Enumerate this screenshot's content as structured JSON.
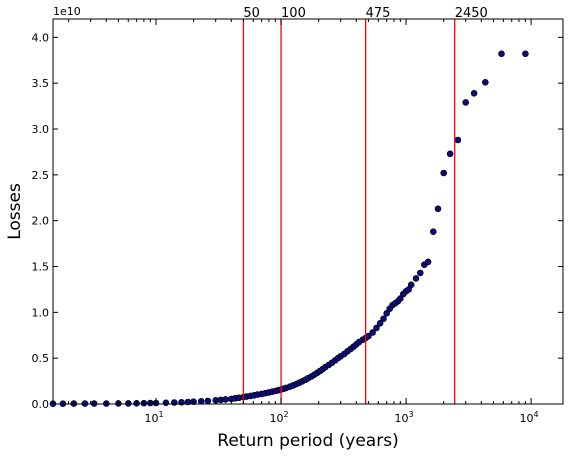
{
  "chart_data": {
    "type": "scatter",
    "title": "",
    "xlabel": "Return period (years)",
    "ylabel": "Losses",
    "x_scale": "log",
    "xlim": [
      1.5,
      18000
    ],
    "ylim": [
      0,
      42000000000
    ],
    "y_multiplier_label": "1e10",
    "x_ticks": [
      {
        "value": 10,
        "base": "10",
        "exp": "1"
      },
      {
        "value": 100,
        "base": "10",
        "exp": "2"
      },
      {
        "value": 1000,
        "base": "10",
        "exp": "3"
      },
      {
        "value": 10000,
        "base": "10",
        "exp": "4"
      }
    ],
    "y_ticks": [
      {
        "value": 0,
        "label": "0.0"
      },
      {
        "value": 5000000000,
        "label": "0.5"
      },
      {
        "value": 10000000000,
        "label": "1.0"
      },
      {
        "value": 15000000000,
        "label": "1.5"
      },
      {
        "value": 20000000000,
        "label": "2.0"
      },
      {
        "value": 25000000000,
        "label": "2.5"
      },
      {
        "value": 30000000000,
        "label": "3.0"
      },
      {
        "value": 35000000000,
        "label": "3.5"
      },
      {
        "value": 40000000000,
        "label": "4.0"
      }
    ],
    "reference_lines": [
      {
        "x": 50,
        "label": "50"
      },
      {
        "x": 100,
        "label": "100"
      },
      {
        "x": 475,
        "label": "475"
      },
      {
        "x": 2450,
        "label": "2450"
      }
    ],
    "grid": false,
    "marker_color": "#0b0b7a",
    "reference_line_color": "#ff0000",
    "series": [
      {
        "x": [
          1.5,
          1.8,
          2.2,
          2.7,
          3.2,
          4,
          5,
          6,
          7,
          8,
          9,
          10,
          12,
          14,
          16,
          18,
          20,
          23,
          26,
          30,
          33,
          36,
          40,
          43,
          46,
          50,
          53,
          57,
          61,
          65,
          70,
          75,
          80,
          85,
          90,
          95,
          100,
          105,
          110,
          118,
          125,
          133,
          140,
          148,
          157,
          165,
          175,
          185,
          195,
          205,
          215,
          225,
          240,
          255,
          270,
          285,
          300,
          320,
          340,
          360,
          380,
          400,
          420,
          450,
          475,
          500,
          540,
          580,
          620,
          660,
          700,
          740,
          780,
          820,
          860,
          900,
          950,
          1000,
          1050,
          1100,
          1200,
          1300,
          1400,
          1500,
          1650,
          1800,
          2000,
          2250,
          2600,
          3000,
          3500,
          4300,
          5800,
          9000
        ],
        "y": [
          30000000.0,
          30000000.0,
          40000000.0,
          40000000.0,
          50000000.0,
          50000000.0,
          60000000.0,
          70000000.0,
          80000000.0,
          90000000.0,
          100000000.0,
          110000000.0,
          130000000.0,
          160000000.0,
          190000000.0,
          220000000.0,
          250000000.0,
          290000000.0,
          340000000.0,
          400000000.0,
          450000000.0,
          500000000.0,
          560000000.0,
          620000000.0,
          680000000.0,
          750000000.0,
          810000000.0,
          880000000.0,
          950000000.0,
          1020000000.0,
          1100000000.0,
          1180000000.0,
          1260000000.0,
          1340000000.0,
          1420000000.0,
          1500000000.0,
          1580000000.0,
          1670000000.0,
          1760000000.0,
          1900000000.0,
          2030000000.0,
          2180000000.0,
          2320000000.0,
          2480000000.0,
          2650000000.0,
          2810000000.0,
          3000000000.0,
          3200000000.0,
          3400000000.0,
          3600000000.0,
          3800000000.0,
          4000000000.0,
          4250000000.0,
          4500000000.0,
          4750000000.0,
          5000000000.0,
          5200000000.0,
          5450000000.0,
          5750000000.0,
          6000000000.0,
          6250000000.0,
          6500000000.0,
          6750000000.0,
          7000000000.0,
          7200000000.0,
          7400000000.0,
          7800000000.0,
          8300000000.0,
          8800000000.0,
          9300000000.0,
          9900000000.0,
          10400000000.0,
          10800000000.0,
          11000000000.0,
          11200000000.0,
          11500000000.0,
          12000000000.0,
          12300000000.0,
          12500000000.0,
          13000000000.0,
          13700000000.0,
          14300000000.0,
          15200000000.0,
          15500000000.0,
          18800000000.0,
          21300000000.0,
          25200000000.0,
          27300000000.0,
          28800000000.0,
          32900000000.0,
          33900000000.0,
          35100000000.0,
          38200000000.0,
          38200000000.0
        ]
      }
    ]
  }
}
